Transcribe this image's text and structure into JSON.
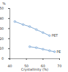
{
  "chart_data": {
    "type": "line",
    "x_label": "Crystallinity (%)",
    "y_label": "%",
    "xlim": [
      40,
      70
    ],
    "xticks": [
      40,
      50,
      60,
      70
    ],
    "ylim": [
      0,
      50
    ],
    "yticks": [
      0,
      10,
      20,
      30,
      40,
      50
    ],
    "marker": "circle",
    "series": [
      {
        "name": "PET",
        "color": "#5b8fc7",
        "x": [
          43,
          48,
          52,
          56,
          60,
          64
        ],
        "values": [
          37,
          34,
          32,
          29,
          26,
          23
        ]
      },
      {
        "name": "PE",
        "color": "#5b8fc7",
        "x": [
          52,
          56,
          60,
          64,
          67
        ],
        "values": [
          12,
          11,
          9.5,
          8,
          7
        ]
      }
    ]
  }
}
